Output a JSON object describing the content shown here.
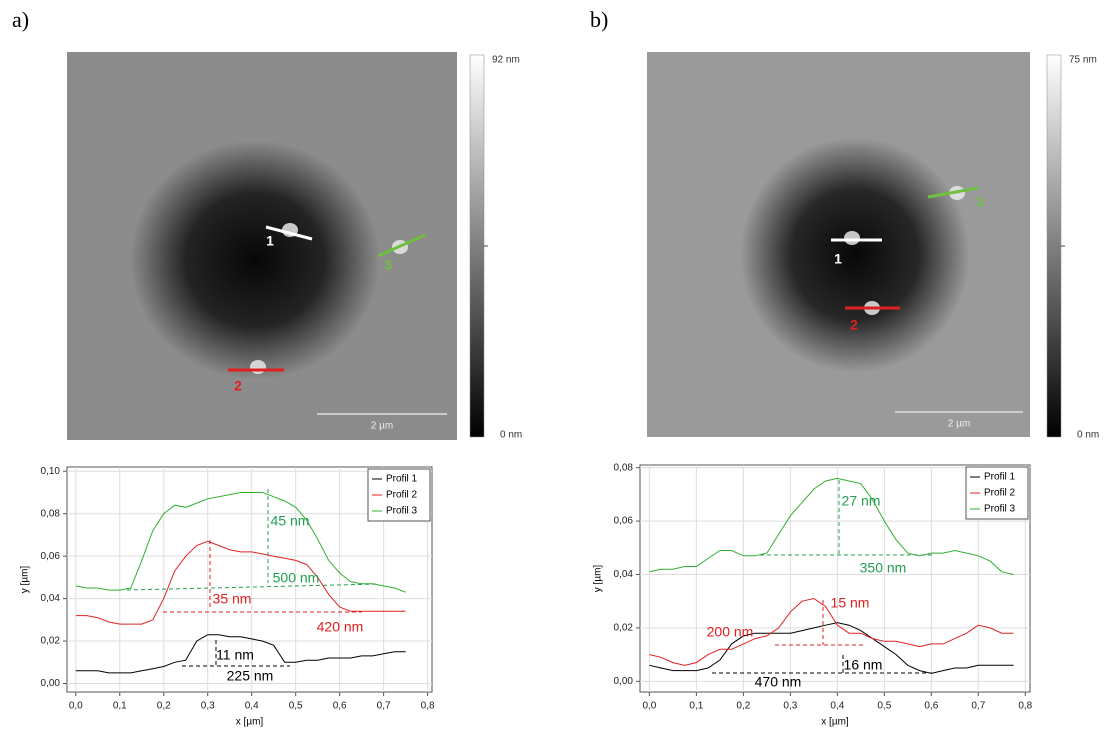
{
  "panels": [
    {
      "label": "a)",
      "colorbar_max": "92 nm",
      "colorbar_min": "0 nm",
      "scale_bar": "2 µm",
      "markers": [
        {
          "text": "1",
          "color": "#ffffff"
        },
        {
          "text": "2",
          "color": "#e02020"
        },
        {
          "text": "3",
          "color": "#70c040"
        }
      ]
    },
    {
      "label": "b)",
      "colorbar_max": "75 nm",
      "colorbar_min": "0 nm",
      "scale_bar": "2 µm",
      "markers": [
        {
          "text": "1",
          "color": "#ffffff"
        },
        {
          "text": "2",
          "color": "#e02020"
        },
        {
          "text": "3",
          "color": "#70c040"
        }
      ]
    }
  ],
  "chart_data": [
    {
      "type": "line",
      "xlabel": "x [µm]",
      "ylabel": "y [µm]",
      "grid": true,
      "legend": "top-right",
      "xlim": [
        -0.02,
        0.81
      ],
      "ylim": [
        -0.004,
        0.102
      ],
      "xticks": [
        {
          "value": 0,
          "label": "0,0"
        },
        {
          "value": 0.1,
          "label": "0,1"
        },
        {
          "value": 0.2,
          "label": "0,2"
        },
        {
          "value": 0.3,
          "label": "0,3"
        },
        {
          "value": 0.4,
          "label": "0,4"
        },
        {
          "value": 0.5,
          "label": "0,5"
        },
        {
          "value": 0.6,
          "label": "0,6"
        },
        {
          "value": 0.7,
          "label": "0,7"
        },
        {
          "value": 0.8,
          "label": "0,8"
        }
      ],
      "yticks": [
        {
          "value": 0,
          "label": "0,00"
        },
        {
          "value": 0.02,
          "label": "0,02"
        },
        {
          "value": 0.04,
          "label": "0,04"
        },
        {
          "value": 0.06,
          "label": "0,06"
        },
        {
          "value": 0.08,
          "label": "0,08"
        },
        {
          "value": 0.1,
          "label": "0,10"
        }
      ],
      "x": [
        0,
        0.025,
        0.05,
        0.075,
        0.1,
        0.125,
        0.15,
        0.175,
        0.2,
        0.225,
        0.25,
        0.275,
        0.3,
        0.325,
        0.35,
        0.375,
        0.4,
        0.425,
        0.45,
        0.475,
        0.5,
        0.525,
        0.55,
        0.575,
        0.6,
        0.625,
        0.65,
        0.675,
        0.7,
        0.725,
        0.75
      ],
      "series": [
        {
          "name": "Profil 1",
          "color": "#000000",
          "values": [
            0.006,
            0.006,
            0.006,
            0.005,
            0.005,
            0.005,
            0.006,
            0.007,
            0.008,
            0.01,
            0.011,
            0.02,
            0.023,
            0.023,
            0.022,
            0.022,
            0.021,
            0.02,
            0.018,
            0.01,
            0.01,
            0.011,
            0.011,
            0.012,
            0.012,
            0.012,
            0.013,
            0.013,
            0.014,
            0.015,
            0.015
          ]
        },
        {
          "name": "Profil 2",
          "color": "#e02020",
          "values": [
            0.032,
            0.032,
            0.031,
            0.029,
            0.028,
            0.028,
            0.028,
            0.03,
            0.04,
            0.053,
            0.06,
            0.065,
            0.067,
            0.065,
            0.063,
            0.062,
            0.062,
            0.061,
            0.06,
            0.059,
            0.058,
            0.056,
            0.05,
            0.042,
            0.036,
            0.034,
            0.034,
            0.034,
            0.034,
            0.034,
            0.034
          ]
        },
        {
          "name": "Profil 3",
          "color": "#30b030",
          "values": [
            0.046,
            0.045,
            0.045,
            0.044,
            0.044,
            0.045,
            0.058,
            0.072,
            0.08,
            0.084,
            0.083,
            0.085,
            0.087,
            0.088,
            0.089,
            0.09,
            0.09,
            0.09,
            0.088,
            0.086,
            0.083,
            0.077,
            0.068,
            0.058,
            0.052,
            0.048,
            0.047,
            0.047,
            0.046,
            0.045,
            0.043
          ]
        }
      ],
      "annotations": [
        {
          "text": "45 nm",
          "color": "#20a050"
        },
        {
          "text": "500 nm",
          "color": "#20a050"
        },
        {
          "text": "35 nm",
          "color": "#e02020"
        },
        {
          "text": "420 nm",
          "color": "#e02020"
        },
        {
          "text": "11 nm",
          "color": "#000000"
        },
        {
          "text": "225 nm",
          "color": "#000000"
        }
      ]
    },
    {
      "type": "line",
      "xlabel": "x [µm]",
      "ylabel": "y [µm]",
      "grid": true,
      "legend": "top-right",
      "xlim": [
        -0.02,
        0.81
      ],
      "ylim": [
        -0.004,
        0.081
      ],
      "xticks": [
        {
          "value": 0,
          "label": "0,0"
        },
        {
          "value": 0.1,
          "label": "0,1"
        },
        {
          "value": 0.2,
          "label": "0,2"
        },
        {
          "value": 0.3,
          "label": "0,3"
        },
        {
          "value": 0.4,
          "label": "0,4"
        },
        {
          "value": 0.5,
          "label": "0,5"
        },
        {
          "value": 0.6,
          "label": "0,6"
        },
        {
          "value": 0.7,
          "label": "0,7"
        },
        {
          "value": 0.8,
          "label": "0,8"
        }
      ],
      "yticks": [
        {
          "value": 0,
          "label": "0,00"
        },
        {
          "value": 0.02,
          "label": "0,02"
        },
        {
          "value": 0.04,
          "label": "0,04"
        },
        {
          "value": 0.06,
          "label": "0,06"
        },
        {
          "value": 0.08,
          "label": "0,08"
        }
      ],
      "x": [
        0,
        0.025,
        0.05,
        0.075,
        0.1,
        0.125,
        0.15,
        0.175,
        0.2,
        0.225,
        0.25,
        0.275,
        0.3,
        0.325,
        0.35,
        0.375,
        0.4,
        0.425,
        0.45,
        0.475,
        0.5,
        0.525,
        0.55,
        0.575,
        0.6,
        0.625,
        0.65,
        0.675,
        0.7,
        0.725,
        0.75,
        0.775
      ],
      "series": [
        {
          "name": "Profil 1",
          "color": "#000000",
          "values": [
            0.006,
            0.005,
            0.004,
            0.004,
            0.004,
            0.005,
            0.008,
            0.014,
            0.017,
            0.018,
            0.018,
            0.018,
            0.018,
            0.019,
            0.02,
            0.021,
            0.022,
            0.021,
            0.019,
            0.016,
            0.013,
            0.01,
            0.006,
            0.004,
            0.003,
            0.004,
            0.005,
            0.005,
            0.006,
            0.006,
            0.006,
            0.006
          ]
        },
        {
          "name": "Profil 2",
          "color": "#e02020",
          "values": [
            0.01,
            0.009,
            0.007,
            0.006,
            0.007,
            0.01,
            0.012,
            0.012,
            0.014,
            0.016,
            0.017,
            0.02,
            0.026,
            0.03,
            0.031,
            0.028,
            0.021,
            0.018,
            0.018,
            0.016,
            0.015,
            0.015,
            0.014,
            0.013,
            0.014,
            0.014,
            0.016,
            0.018,
            0.021,
            0.02,
            0.018,
            0.018
          ]
        },
        {
          "name": "Profil 3",
          "color": "#30b030",
          "values": [
            0.041,
            0.042,
            0.042,
            0.043,
            0.043,
            0.046,
            0.049,
            0.049,
            0.047,
            0.047,
            0.048,
            0.055,
            0.062,
            0.067,
            0.072,
            0.075,
            0.076,
            0.075,
            0.074,
            0.068,
            0.06,
            0.053,
            0.048,
            0.047,
            0.048,
            0.048,
            0.049,
            0.048,
            0.047,
            0.045,
            0.041,
            0.04
          ]
        }
      ],
      "annotations": [
        {
          "text": "27 nm",
          "color": "#20a050"
        },
        {
          "text": "350 nm",
          "color": "#20a050"
        },
        {
          "text": "15 nm",
          "color": "#e02020"
        },
        {
          "text": "200 nm",
          "color": "#e02020"
        },
        {
          "text": "16 nm",
          "color": "#000000"
        },
        {
          "text": "470 nm",
          "color": "#000000"
        }
      ]
    }
  ]
}
